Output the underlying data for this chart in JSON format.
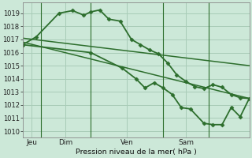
{
  "bg_color": "#cce8d8",
  "grid_color": "#a8ccb8",
  "line_color": "#2d6e2d",
  "marker_color": "#2d6e2d",
  "xlabel_text": "Pression niveau de la mer( hPa )",
  "ylim": [
    1009.5,
    1019.8
  ],
  "yticks": [
    1010,
    1011,
    1012,
    1013,
    1014,
    1015,
    1016,
    1017,
    1018,
    1019
  ],
  "xlim": [
    0,
    100
  ],
  "day_lines": [
    8,
    30,
    62,
    82
  ],
  "day_labels": [
    {
      "x": 4,
      "label": "Jeu"
    },
    {
      "x": 19,
      "label": "Dim"
    },
    {
      "x": 46,
      "label": "Ven"
    },
    {
      "x": 72,
      "label": "Sam"
    }
  ],
  "series": [
    {
      "x": [
        0,
        6,
        16,
        22,
        27,
        30,
        34,
        38,
        43,
        48,
        52,
        56,
        60,
        64,
        68,
        72,
        76,
        80,
        84,
        88,
        92,
        96,
        100
      ],
      "y": [
        1016.6,
        1017.2,
        1019.0,
        1019.2,
        1018.85,
        1019.1,
        1019.25,
        1018.55,
        1018.4,
        1017.0,
        1016.6,
        1016.2,
        1015.9,
        1015.2,
        1014.3,
        1013.8,
        1013.4,
        1013.25,
        1013.55,
        1013.35,
        1012.8,
        1012.55,
        1012.5
      ],
      "lw": 1.3,
      "marker": "D",
      "ms": 2.5
    },
    {
      "x": [
        0,
        100
      ],
      "y": [
        1017.1,
        1015.0
      ],
      "lw": 1.1,
      "marker": null,
      "ms": 0
    },
    {
      "x": [
        0,
        100
      ],
      "y": [
        1016.8,
        1012.5
      ],
      "lw": 1.1,
      "marker": null,
      "ms": 0
    },
    {
      "x": [
        0,
        30,
        44,
        50,
        54,
        58,
        62,
        66,
        70,
        74,
        80,
        84,
        88,
        92,
        96,
        100
      ],
      "y": [
        1016.6,
        1016.0,
        1014.8,
        1014.0,
        1013.3,
        1013.7,
        1013.3,
        1012.8,
        1011.8,
        1011.7,
        1010.6,
        1010.5,
        1010.5,
        1011.8,
        1011.1,
        1012.5
      ],
      "lw": 1.3,
      "marker": "D",
      "ms": 2.5
    }
  ]
}
